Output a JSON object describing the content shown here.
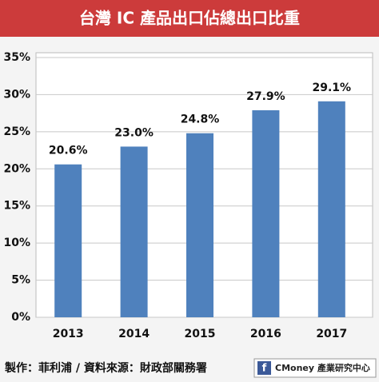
{
  "chart_data": {
    "type": "bar",
    "title": "台灣 IC 產品出口佔總出口比重",
    "categories": [
      "2013",
      "2014",
      "2015",
      "2016",
      "2017"
    ],
    "values": [
      20.6,
      23.0,
      24.8,
      27.9,
      29.1
    ],
    "value_labels": [
      "20.6%",
      "23.0%",
      "24.8%",
      "27.9%",
      "29.1%"
    ],
    "color": "#4f81bd",
    "ylim": [
      0,
      35
    ],
    "yticks": [
      {
        "value": 0,
        "label": "0%"
      },
      {
        "value": 5,
        "label": "5%"
      },
      {
        "value": 10,
        "label": "10%"
      },
      {
        "value": 15,
        "label": "15%"
      },
      {
        "value": 20,
        "label": "20%"
      },
      {
        "value": 25,
        "label": "25%"
      },
      {
        "value": 30,
        "label": "30%"
      },
      {
        "value": 35,
        "label": "35%"
      }
    ],
    "grid": true
  },
  "footer": {
    "credit": "製作：菲利浦 / 資料來源：財政部關務署",
    "logo_icon": "f",
    "logo_text": "CMoney 產業研究中心"
  }
}
